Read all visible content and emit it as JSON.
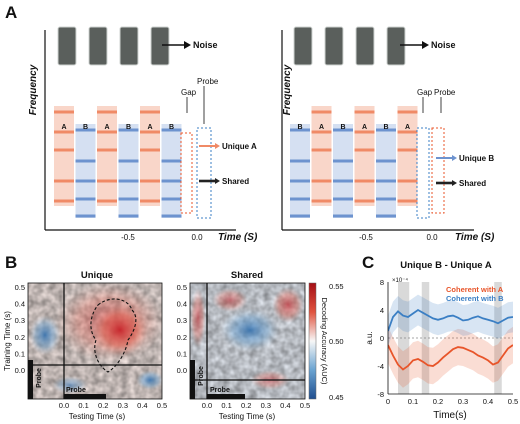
{
  "panels": {
    "a": "A",
    "b": "B",
    "c": "C"
  },
  "panel_a": {
    "axis_y": "Frequency",
    "axis_x": "Time (S)",
    "noise_label": "Noise",
    "left": {
      "sequence": [
        "A",
        "B",
        "A",
        "B",
        "A",
        "B"
      ],
      "gap_label": "Gap",
      "probe_label": "Probe",
      "unique_label": "Unique A",
      "shared_label": "Shared",
      "tick_labels": [
        "-0.5",
        "0.0"
      ]
    },
    "right": {
      "sequence": [
        "B",
        "A",
        "B",
        "A",
        "B",
        "A"
      ],
      "gap_label": "Gap",
      "probe_label": "Probe",
      "unique_label": "Unique B",
      "shared_label": "Shared",
      "tick_labels": [
        "-0.5",
        "0.0"
      ]
    },
    "colors": {
      "a_tone": "#f08a66",
      "a_fill": "#f9d6c9",
      "b_tone": "#6d93cf",
      "b_fill": "#d5e0f2",
      "noise": "#5a5f5c"
    }
  },
  "panel_b": {
    "left_title": "Unique",
    "right_title": "Shared",
    "ylabel": "Training Time (s)",
    "xlabel": "Testing Time (s)",
    "yticks": [
      "0.5",
      "0.4",
      "0.3",
      "0.2",
      "0.1",
      "0.0"
    ],
    "xticks": [
      "0.0",
      "0.1",
      "0.2",
      "0.3",
      "0.4",
      "0.5"
    ],
    "probe_label": "Probe",
    "colorbar_label": "Decoding Accuracy (AUC)",
    "colorbar_ticks": [
      "0.55",
      "0.50",
      "0.45"
    ]
  },
  "panel_c": {
    "title": "Unique B - Unique A",
    "ylabel": "a.u.",
    "xlabel": "Time(s)",
    "exponent": "×10⁻⁴",
    "yticks": [
      "8",
      "4",
      "0",
      "-4",
      "-8"
    ],
    "xticks": [
      "0",
      "0.1",
      "0.2",
      "0.3",
      "0.4",
      "0.5"
    ],
    "legend": [
      "Coherent with A",
      "Coherent with B"
    ],
    "colors": {
      "a": "#e8552a",
      "b": "#3b7fc4"
    }
  },
  "chart_data": {
    "type": "line",
    "title": "Unique B - Unique A",
    "xlabel": "Time(s)",
    "ylabel": "a.u.",
    "xlim": [
      0,
      0.5
    ],
    "ylim": [
      -8,
      8
    ],
    "x": [
      0,
      0.02,
      0.04,
      0.06,
      0.08,
      0.1,
      0.12,
      0.14,
      0.16,
      0.18,
      0.2,
      0.22,
      0.24,
      0.26,
      0.28,
      0.3,
      0.32,
      0.34,
      0.36,
      0.38,
      0.4,
      0.42,
      0.44,
      0.46,
      0.48,
      0.5
    ],
    "series": [
      {
        "name": "Coherent with A",
        "values": [
          -1.0,
          -2.5,
          -3.8,
          -4.5,
          -4.0,
          -3.2,
          -3.0,
          -3.4,
          -3.9,
          -4.0,
          -3.5,
          -2.8,
          -2.2,
          -1.6,
          -1.3,
          -1.4,
          -1.7,
          -2.0,
          -2.5,
          -2.8,
          -3.2,
          -3.8,
          -3.5,
          -2.5,
          -1.5,
          -1.0
        ]
      },
      {
        "name": "Coherent with B",
        "values": [
          1.0,
          3.0,
          3.8,
          3.2,
          3.0,
          3.5,
          4.0,
          3.6,
          3.2,
          2.8,
          2.6,
          2.8,
          3.1,
          3.2,
          2.9,
          2.5,
          2.6,
          2.9,
          3.1,
          2.8,
          2.6,
          2.4,
          2.1,
          2.5,
          2.9,
          3.0
        ]
      }
    ],
    "shaded_regions": [
      [
        0.04,
        0.085
      ],
      [
        0.135,
        0.165
      ],
      [
        0.425,
        0.455
      ]
    ]
  }
}
